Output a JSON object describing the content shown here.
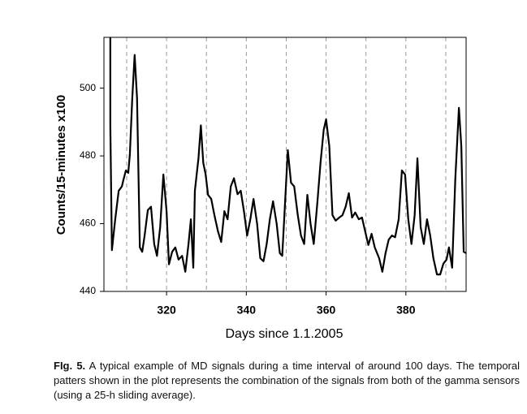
{
  "chart_data": {
    "type": "line",
    "ylabel": "Counts/15-minutes x100",
    "xlabel": "Days since 1.1.2005",
    "color": "#000000",
    "xlim": [
      304.3,
      395.1
    ],
    "ylim": [
      440,
      515
    ],
    "xticks": [
      320,
      340,
      360,
      380
    ],
    "yticks": [
      440,
      460,
      480,
      500
    ],
    "x_gridlines": [
      310,
      320,
      330,
      340,
      350,
      360,
      370,
      380,
      390
    ],
    "grid_style": "dashed",
    "x": [
      305.9,
      305.9,
      306.3,
      307.1,
      308,
      308.8,
      309.2,
      309.8,
      310.4,
      310.8,
      311.4,
      312,
      312.6,
      313.3,
      313.9,
      314.5,
      315.3,
      316.1,
      316.9,
      317.6,
      318.4,
      319.2,
      320,
      320.6,
      321.4,
      322.2,
      323,
      323.9,
      324.7,
      325.5,
      326.1,
      326.7,
      327.1,
      328,
      328.6,
      329.2,
      329.8,
      330.4,
      331.2,
      332,
      332.9,
      333.7,
      334.5,
      335.3,
      336.1,
      336.9,
      337.8,
      338.6,
      339.4,
      340.2,
      341,
      341.8,
      342.7,
      343.5,
      344.3,
      345.1,
      345.9,
      346.7,
      347.6,
      348.4,
      349,
      349.6,
      350.4,
      351.2,
      352,
      352.9,
      353.7,
      354.5,
      355.3,
      356.1,
      356.9,
      357.8,
      358.6,
      359.4,
      360,
      360.8,
      361.6,
      362.4,
      363.3,
      364.1,
      364.9,
      365.7,
      366.5,
      367.3,
      368.2,
      369,
      369.8,
      370.6,
      371.4,
      372.2,
      373.3,
      374.1,
      374.9,
      375.7,
      376.5,
      377.3,
      378.2,
      379,
      379.8,
      380.6,
      381.4,
      382.2,
      382.9,
      383.7,
      384.5,
      385.3,
      386.1,
      386.9,
      387.8,
      388.6,
      389.4,
      390.2,
      390.8,
      391.6,
      392.4,
      393.3,
      393.9,
      394.5,
      395.1
    ],
    "values": [
      515,
      489,
      452.2,
      461,
      469.7,
      471,
      473,
      475.7,
      475,
      480.5,
      497,
      509.8,
      497,
      453,
      451.7,
      456.5,
      464,
      465,
      454,
      450.5,
      459,
      474.5,
      463.7,
      448,
      451.7,
      453,
      449.4,
      450.5,
      445.8,
      454,
      461.3,
      447,
      469.7,
      479.3,
      489,
      478,
      474.5,
      468.5,
      467.3,
      462.5,
      457.7,
      454.6,
      463.7,
      461.3,
      471,
      473.4,
      468.7,
      469.7,
      463.7,
      456.5,
      461.3,
      467.3,
      460,
      449.8,
      448.9,
      454,
      461.3,
      466.6,
      460,
      451.3,
      450.5,
      463.7,
      481.7,
      472.1,
      471,
      462.5,
      456.5,
      454,
      468.5,
      460,
      454,
      466.1,
      478,
      487.7,
      490.8,
      482.9,
      462.5,
      460.9,
      461.8,
      462.5,
      465,
      469,
      461.8,
      463.3,
      461.3,
      461.8,
      457.7,
      453.7,
      457,
      453,
      449.8,
      445.8,
      451.3,
      455.3,
      456.5,
      456,
      461.3,
      475.7,
      474.5,
      461.3,
      454,
      462.5,
      479.3,
      459,
      454,
      461.3,
      456.5,
      449.8,
      445,
      445,
      448.2,
      449.4,
      453,
      447,
      473.4,
      494.2,
      482.9,
      451.7,
      451.3
    ]
  },
  "caption": {
    "label": "FIg. 5.",
    "text": " A typical example of MD signals during a time interval of around 100 days. The temporal patters shown in the plot represents the combination of the signals from both of the gamma sensors (using a 25-h sliding average)."
  }
}
